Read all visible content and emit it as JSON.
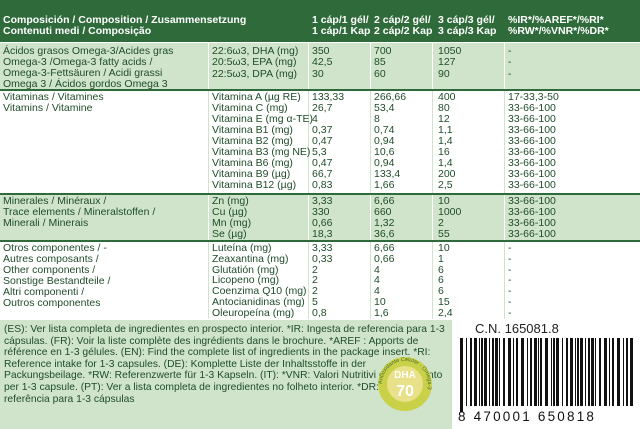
{
  "header": {
    "columns": [
      [
        "Composición / Composition / Zusammensetzung",
        "Contenuti medi / Composição"
      ],
      [
        "1 cáp/1 gél/",
        "1 cáp/1 Kap"
      ],
      [
        "2 cáp/2 gél/",
        "2 cáp/2 Kap"
      ],
      [
        "3 cáp/3 gél/",
        "3 cáp/3 Kap"
      ],
      [
        "%IR*/%AREF*/%RI*",
        "%RW*/%VNR*/%DR*"
      ]
    ]
  },
  "sections": [
    {
      "label": [
        "Ácidos grasos Omega-3/Acides gras",
        "Omega-3 /Omega-3 fatty acids /",
        "Omega-3-Fettsäuren / Acidi grassi",
        "Omega 3 / Ácidos gordos Omega 3"
      ],
      "rows": [
        {
          "item": "22:6ω3, DHA (mg)",
          "values": [
            "350",
            "700",
            "1050",
            "-"
          ]
        },
        {
          "item": "20:5ω3, EPA (mg)",
          "values": [
            "42,5",
            "85",
            "127",
            "-"
          ]
        },
        {
          "item": "22:5ω3, DPA (mg)",
          "values": [
            "30",
            "60",
            "90",
            "-"
          ]
        }
      ]
    },
    {
      "label": [
        "Vitaminas / Vitamines",
        "Vitamins / Vitamine"
      ],
      "rows": [
        {
          "item": "Vitamina A (µg RE)",
          "values": [
            "133,33",
            "266,66",
            "400",
            "17-33,3-50"
          ]
        },
        {
          "item": "Vitamina C (mg)",
          "values": [
            "26,7",
            "53,4",
            "80",
            "33-66-100"
          ]
        },
        {
          "item": "Vitamina E (mg α-TE)",
          "values": [
            "4",
            "8",
            "12",
            "33-66-100"
          ]
        },
        {
          "item": "Vitamina B1 (mg)",
          "values": [
            "0,37",
            "0,74",
            "1,1",
            "33-66-100"
          ]
        },
        {
          "item": "Vitamina B2 (mg)",
          "values": [
            "0,47",
            "0,94",
            "1,4",
            "33-66-100"
          ]
        },
        {
          "item": "Vitamina B3 (mg NE)",
          "values": [
            "5,3",
            "10,6",
            "16",
            "33-66-100"
          ]
        },
        {
          "item": "Vitamina B6 (mg)",
          "values": [
            "0,47",
            "0,94",
            "1,4",
            "33-66-100"
          ]
        },
        {
          "item": "Vitamina B9 (µg)",
          "values": [
            "66,7",
            "133,4",
            "200",
            "33-66-100"
          ]
        },
        {
          "item": "Vitamina B12 (µg)",
          "values": [
            "0,83",
            "1,66",
            "2,5",
            "33-66-100"
          ]
        }
      ]
    },
    {
      "label": [
        "Minerales / Minéraux /",
        "Trace elements / Mineralstoffen /",
        "Minerali / Minerais"
      ],
      "rows": [
        {
          "item": "Zn (mg)",
          "values": [
            "3,33",
            "6,66",
            "10",
            "33-66-100"
          ]
        },
        {
          "item": "Cu (µg)",
          "values": [
            "330",
            "660",
            "1000",
            "33-66-100"
          ]
        },
        {
          "item": "Mn (mg)",
          "values": [
            "0,66",
            "1,32",
            "2",
            "33-66-100"
          ]
        },
        {
          "item": "Se (µg)",
          "values": [
            "18,3",
            "36,6",
            "55",
            "33-66-100"
          ]
        }
      ]
    },
    {
      "label": [
        "Otros componentes / -",
        "Autres composants /",
        "Other components /",
        "Sonstige Bestandteile /",
        "Altri componenti /",
        "Outros componentes"
      ],
      "rows": [
        {
          "item": "Luteína (mg)",
          "values": [
            "3,33",
            "6,66",
            "10",
            "-"
          ]
        },
        {
          "item": "Zeaxantina (mg)",
          "values": [
            "0,33",
            "0,66",
            "1",
            "-"
          ]
        },
        {
          "item": "Glutatión (mg)",
          "values": [
            "2",
            "4",
            "6",
            "-"
          ]
        },
        {
          "item": "Licopeno (mg)",
          "values": [
            "2",
            "4",
            "6",
            "-"
          ]
        },
        {
          "item": "Coenzima Q10 (mg)",
          "values": [
            "2",
            "4",
            "6",
            "-"
          ]
        },
        {
          "item": "Antocianidinas (mg)",
          "values": [
            "5",
            "10",
            "15",
            "-"
          ]
        },
        {
          "item": "Oleuropeína (mg)",
          "values": [
            "0,8",
            "1,6",
            "2,4",
            "-"
          ]
        }
      ]
    }
  ],
  "footer": {
    "text": "(ES): Ver lista completa de ingredientes en prospecto interior. *IR: Ingesta de referencia para 1-3 cápsulas. (FR): Voir la liste complète des ingrédients dans le brochure. *AREF : Apports de référence en 1-3 gélules. (EN): Find the complete list of ingredients in the package insert. *RI: Reference intake for 1-3 capsules. (DE): Komplette Liste der Inhaltsstoffe in der Packungsbeilage. *RW: Referenzwerte für 1-3 Kapseln. (IT): *VNR: Valori Nutritivi di Riferimento per 1-3 capsule. (PT): Ver a lista completa de ingredientes no folheto interior. *DR: Dose de referência para 1-3 cápsulas",
    "cn": "C.N. 165081.8",
    "badge": {
      "ring": "Antioxidante Celular · Omega-3",
      "top": "DHA",
      "number": "70"
    },
    "barcode": "8 470001 650818"
  }
}
